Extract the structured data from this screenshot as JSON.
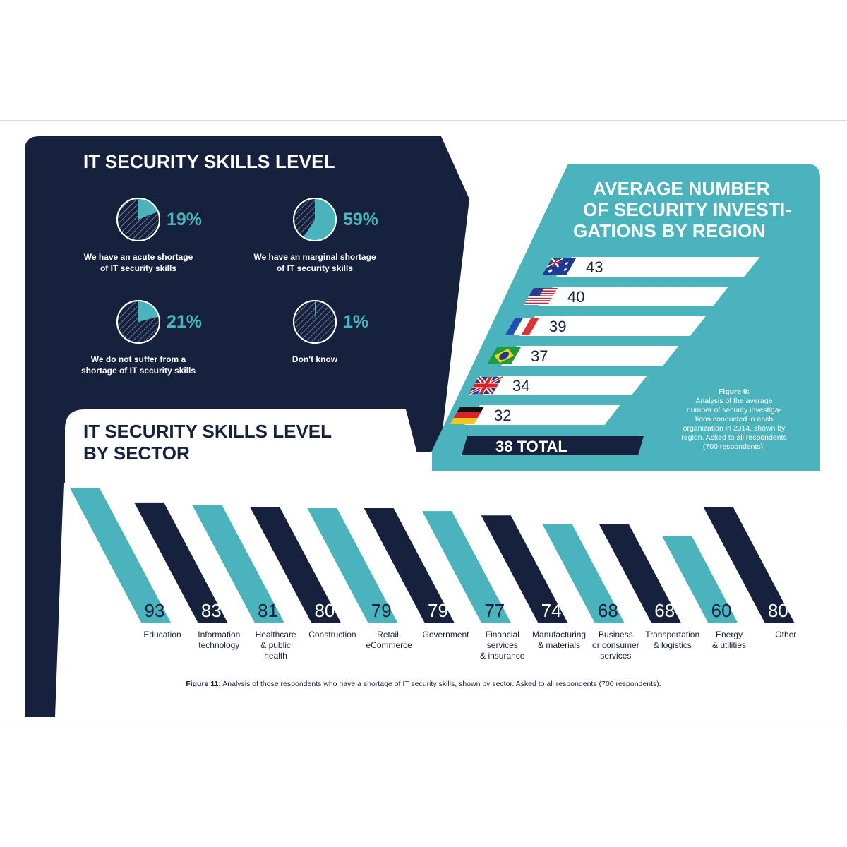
{
  "skills_level": {
    "title": "IT SECURITY SKILLS LEVEL",
    "items": [
      {
        "percent": 19,
        "label": "19%",
        "caption": [
          "We have an acute shortage",
          "of IT security skills"
        ]
      },
      {
        "percent": 59,
        "label": "59%",
        "caption": [
          "We have an marginal shortage",
          "of IT security skills"
        ]
      },
      {
        "percent": 21,
        "label": "21%",
        "caption": [
          "We do not suffer from a",
          "shortage of IT security skills"
        ]
      },
      {
        "percent": 1,
        "label": "1%",
        "caption": [
          "Don't know"
        ]
      }
    ]
  },
  "investigations": {
    "title_lines": [
      "AVERAGE NUMBER",
      "OF SECURITY INVESTI-",
      "GATIONS BY REGION"
    ],
    "total_label": "38 TOTAL",
    "figure_title": "Figure 9:",
    "figure_caption": [
      "Analysis of the average",
      "number of security investiga-",
      "tions conducted in each",
      "organization in 2014, shown by",
      "region. Asked to all respondents",
      "(700 respondents)."
    ]
  },
  "sector": {
    "title_lines": [
      "IT SECURITY SKILLS LEVEL",
      "BY SECTOR"
    ],
    "figure_label": "Figure 11:",
    "figure_caption": " Analysis of those respondents who have a shortage of IT security skills, shown by sector. Asked to all respondents (700 respondents)."
  },
  "colors": {
    "navy": "#16213e",
    "teal": "#4bb3bb",
    "white": "#ffffff"
  },
  "chart_data": [
    {
      "type": "pie",
      "categories": [
        "We have an acute shortage of IT security skills",
        "We have an marginal shortage of IT security skills",
        "We do not suffer from a shortage of IT security skills",
        "Don't know"
      ],
      "values": [
        19,
        59,
        21,
        1
      ],
      "title": "IT SECURITY SKILLS LEVEL"
    },
    {
      "type": "bar",
      "title": "AVERAGE NUMBER OF SECURITY INVESTIGATIONS BY REGION",
      "categories": [
        "Australia",
        "USA",
        "France",
        "Brazil",
        "UK",
        "Germany"
      ],
      "values": [
        43,
        40,
        39,
        37,
        34,
        32
      ],
      "total": 38,
      "orientation": "horizontal",
      "icons": [
        "australia-flag-icon",
        "usa-flag-icon",
        "france-flag-icon",
        "brazil-flag-icon",
        "uk-flag-icon",
        "germany-flag-icon"
      ]
    },
    {
      "type": "bar",
      "title": "IT SECURITY SKILLS LEVEL BY SECTOR",
      "categories": [
        [
          "Education"
        ],
        [
          "Information",
          "technology"
        ],
        [
          "Healthcare",
          "& public",
          "health"
        ],
        [
          "Construction"
        ],
        [
          "Retail,",
          "eCommerce"
        ],
        [
          "Government"
        ],
        [
          "Financial",
          "services",
          "& insurance"
        ],
        [
          "Manufacturing",
          "& materials"
        ],
        [
          "Business",
          "or consumer",
          "services"
        ],
        [
          "Transportation",
          "& logistics"
        ],
        [
          "Energy",
          "& utilities"
        ],
        [
          "Other"
        ]
      ],
      "values": [
        93,
        83,
        81,
        80,
        79,
        79,
        77,
        74,
        68,
        68,
        60,
        80
      ],
      "colors": [
        "#4bb3bb",
        "#16213e",
        "#4bb3bb",
        "#16213e",
        "#4bb3bb",
        "#16213e",
        "#4bb3bb",
        "#16213e",
        "#4bb3bb",
        "#16213e",
        "#4bb3bb",
        "#16213e"
      ]
    }
  ]
}
